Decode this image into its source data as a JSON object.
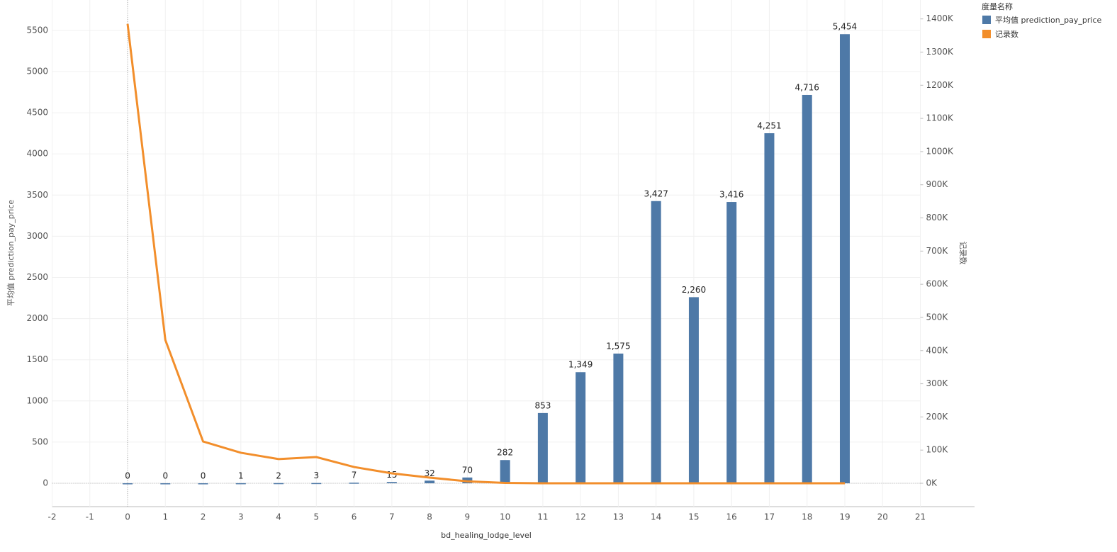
{
  "chart_data": {
    "type": "combo",
    "xlabel": "bd_healing_lodge_level",
    "ylabel": "平均值 prediction_pay_price",
    "y2label": "记录数",
    "legend_title": "度量名称",
    "x": [
      0,
      1,
      2,
      3,
      4,
      5,
      6,
      7,
      8,
      9,
      10,
      11,
      12,
      13,
      14,
      15,
      16,
      17,
      18,
      19
    ],
    "series": [
      {
        "name": "平均值 prediction_pay_price",
        "color": "#4e79a7",
        "type": "bar",
        "values": [
          0,
          0,
          0,
          1,
          2,
          3,
          7,
          15,
          32,
          70,
          282,
          853,
          1349,
          1575,
          3427,
          2260,
          3416,
          4251,
          4716,
          5454
        ],
        "value_labels": [
          "0",
          "0",
          "0",
          "1",
          "2",
          "3",
          "7",
          "15",
          "32",
          "70",
          "282",
          "853",
          "1,349",
          "1,575",
          "3,427",
          "2,260",
          "3,416",
          "4,251",
          "4,716",
          "5,454"
        ]
      },
      {
        "name": "记录数",
        "color": "#f28e2b",
        "type": "line",
        "axis": "y2",
        "values": [
          1385000,
          432000,
          126000,
          92000,
          73000,
          79000,
          49000,
          30000,
          17000,
          6000,
          1000,
          0,
          0,
          0,
          0,
          0,
          0,
          0,
          0,
          0
        ]
      }
    ],
    "xlim": [
      -2,
      21
    ],
    "xticks": [
      -2,
      -1,
      0,
      1,
      2,
      3,
      4,
      5,
      6,
      7,
      8,
      9,
      10,
      11,
      12,
      13,
      14,
      15,
      16,
      17,
      18,
      19,
      20,
      21
    ],
    "ylim": [
      -284,
      5869
    ],
    "yticks": [
      0,
      500,
      1000,
      1500,
      2000,
      2500,
      3000,
      3500,
      4000,
      4500,
      5000,
      5500
    ],
    "y2lim": [
      -70500,
      1457000
    ],
    "y2ticks": [
      {
        "value": 0,
        "label": "0K"
      },
      {
        "value": 100000,
        "label": "100K"
      },
      {
        "value": 200000,
        "label": "200K"
      },
      {
        "value": 300000,
        "label": "300K"
      },
      {
        "value": 400000,
        "label": "400K"
      },
      {
        "value": 500000,
        "label": "500K"
      },
      {
        "value": 600000,
        "label": "600K"
      },
      {
        "value": 700000,
        "label": "700K"
      },
      {
        "value": 800000,
        "label": "800K"
      },
      {
        "value": 900000,
        "label": "900K"
      },
      {
        "value": 1000000,
        "label": "1000K"
      },
      {
        "value": 1100000,
        "label": "1100K"
      },
      {
        "value": 1200000,
        "label": "1200K"
      },
      {
        "value": 1300000,
        "label": "1300K"
      },
      {
        "value": 1400000,
        "label": "1400K"
      }
    ],
    "grid": true
  }
}
